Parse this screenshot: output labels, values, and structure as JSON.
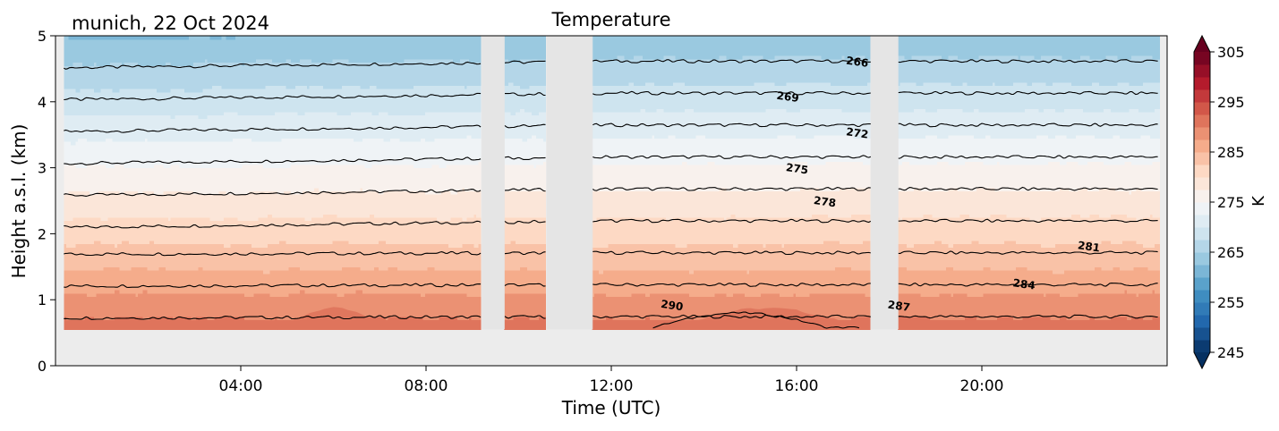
{
  "chart_data": {
    "type": "heatmap",
    "title": "Temperature",
    "subtitle": "munich, 22 Oct 2024",
    "xlabel": "Time (UTC)",
    "ylabel": "Height a.s.l. (km)",
    "x_unit": "hours UTC",
    "xlim": [
      0,
      24
    ],
    "ylim": [
      0,
      5
    ],
    "x_ticks": [
      {
        "value": 4,
        "label": "04:00"
      },
      {
        "value": 8,
        "label": "08:00"
      },
      {
        "value": 12,
        "label": "12:00"
      },
      {
        "value": 16,
        "label": "16:00"
      },
      {
        "value": 20,
        "label": "20:00"
      }
    ],
    "y_ticks": [
      {
        "value": 0,
        "label": "0"
      },
      {
        "value": 1,
        "label": "1"
      },
      {
        "value": 2,
        "label": "2"
      },
      {
        "value": 3,
        "label": "3"
      },
      {
        "value": 4,
        "label": "4"
      },
      {
        "value": 5,
        "label": "5"
      }
    ],
    "data_extent": {
      "x": [
        0.18,
        23.8
      ],
      "y": [
        0.55,
        5
      ]
    },
    "surface_height_km": 0.55,
    "missing_data_hours": [
      [
        9.2,
        9.7
      ],
      [
        10.6,
        11.6
      ],
      [
        17.6,
        18.2
      ]
    ],
    "surface_temp_K": 290.6,
    "lapse_rate_K_per_km": 6.2,
    "warm_core_K": 291.2,
    "grid": false,
    "colorbar": {
      "label": "K",
      "min": 245,
      "max": 305,
      "step": 2.5,
      "colormap": "RdBu_r",
      "extend": "both",
      "ticks": [
        {
          "value": 245,
          "label": "245"
        },
        {
          "value": 255,
          "label": "255"
        },
        {
          "value": 265,
          "label": "265"
        },
        {
          "value": 275,
          "label": "275"
        },
        {
          "value": 285,
          "label": "285"
        },
        {
          "value": 295,
          "label": "295"
        },
        {
          "value": 305,
          "label": "305"
        }
      ]
    },
    "contour_levels": [
      266,
      269,
      272,
      275,
      278,
      281,
      284,
      287,
      290
    ],
    "contour_labels": [
      {
        "text": "266",
        "x": 17.3,
        "y": 4.55
      },
      {
        "text": "269",
        "x": 15.8,
        "y": 4.02
      },
      {
        "text": "272",
        "x": 17.3,
        "y": 3.47
      },
      {
        "text": "275",
        "x": 16.0,
        "y": 2.93
      },
      {
        "text": "278",
        "x": 16.6,
        "y": 2.43
      },
      {
        "text": "281",
        "x": 22.3,
        "y": 1.75
      },
      {
        "text": "284",
        "x": 20.9,
        "y": 1.18
      },
      {
        "text": "287",
        "x": 18.2,
        "y": 0.85
      },
      {
        "text": "290",
        "x": 13.3,
        "y": 0.86
      }
    ]
  }
}
